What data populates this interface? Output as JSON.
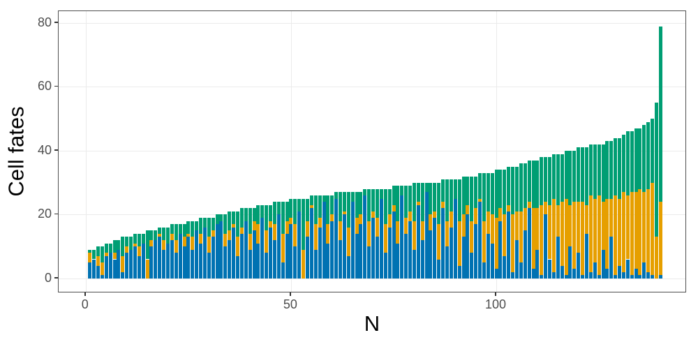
{
  "figure": {
    "background": "#FFFFFF",
    "panel_border_color": "#4F4F4F",
    "grid_color": "#EBEBEB",
    "tick_color": "#333333",
    "tick_label_color": "#4D4D4D",
    "axis_title_color": "#000000"
  },
  "chart_data": {
    "type": "bar",
    "stacked": true,
    "title": "",
    "xlabel": "N",
    "ylabel": "Cell fates",
    "legend": "none",
    "grid": "major",
    "x_ticks": [
      0,
      50,
      100
    ],
    "y_ticks": [
      0,
      20,
      40,
      60,
      80
    ],
    "xlim": [
      -6.6,
      146.4
    ],
    "ylim": [
      -4.6,
      83.7
    ],
    "n_bars": 140,
    "x_start": 1,
    "bar_rel_width": 0.85,
    "series": [
      {
        "name": "fate-blue",
        "color": "#0072B2",
        "values": [
          5,
          6,
          4,
          1,
          7,
          8,
          6,
          9,
          2,
          8,
          9,
          10,
          7,
          11,
          0,
          10,
          12,
          13,
          9,
          11,
          12,
          8,
          14,
          10,
          13,
          9,
          15,
          11,
          16,
          8,
          13,
          17,
          18,
          10,
          12,
          16,
          7,
          14,
          18,
          9,
          15,
          11,
          19,
          8,
          16,
          12,
          20,
          5,
          14,
          17,
          10,
          21,
          0,
          13,
          22,
          9,
          16,
          24,
          11,
          18,
          25,
          12,
          20,
          7,
          24,
          14,
          17,
          26,
          10,
          19,
          13,
          25,
          8,
          16,
          21,
          11,
          26,
          14,
          18,
          9,
          23,
          12,
          27,
          15,
          19,
          6,
          22,
          10,
          16,
          25,
          4,
          13,
          20,
          8,
          17,
          24,
          5,
          14,
          11,
          3,
          18,
          7,
          21,
          2,
          12,
          5,
          15,
          22,
          3,
          9,
          1,
          20,
          6,
          2,
          13,
          4,
          1,
          10,
          3,
          8,
          1,
          14,
          2,
          5,
          1,
          9,
          3,
          13,
          1,
          4,
          2,
          6,
          1,
          3,
          1,
          5,
          2,
          1,
          0,
          1
        ]
      },
      {
        "name": "fate-orange",
        "color": "#E69F00",
        "values": [
          3,
          0,
          3,
          4,
          1,
          0,
          2,
          0,
          5,
          2,
          0,
          1,
          3,
          0,
          6,
          2,
          0,
          1,
          3,
          0,
          2,
          4,
          0,
          3,
          1,
          4,
          0,
          3,
          0,
          5,
          2,
          0,
          0,
          4,
          3,
          1,
          6,
          2,
          0,
          5,
          3,
          6,
          0,
          7,
          2,
          5,
          0,
          9,
          4,
          2,
          7,
          0,
          9,
          5,
          1,
          8,
          3,
          0,
          6,
          2,
          0,
          6,
          1,
          9,
          0,
          5,
          3,
          0,
          8,
          2,
          6,
          0,
          9,
          4,
          2,
          7,
          0,
          5,
          3,
          9,
          1,
          6,
          0,
          5,
          2,
          11,
          2,
          8,
          5,
          0,
          14,
          7,
          3,
          10,
          5,
          1,
          13,
          7,
          9,
          16,
          4,
          13,
          2,
          18,
          9,
          16,
          7,
          2,
          19,
          13,
          22,
          4,
          17,
          23,
          10,
          20,
          24,
          13,
          21,
          16,
          23,
          9,
          24,
          20,
          25,
          15,
          22,
          12,
          25,
          21,
          25,
          20,
          26,
          24,
          27,
          22,
          26,
          29,
          13,
          23
        ]
      },
      {
        "name": "fate-green",
        "color": "#009E73",
        "values": [
          1,
          3,
          3,
          5,
          3,
          3,
          4,
          3,
          6,
          3,
          4,
          3,
          4,
          3,
          9,
          3,
          3,
          2,
          4,
          5,
          3,
          5,
          3,
          4,
          4,
          5,
          3,
          5,
          3,
          6,
          4,
          3,
          2,
          6,
          6,
          4,
          8,
          6,
          4,
          8,
          4,
          6,
          4,
          8,
          5,
          7,
          4,
          10,
          6,
          6,
          8,
          4,
          16,
          7,
          3,
          9,
          7,
          2,
          9,
          6,
          2,
          9,
          6,
          11,
          3,
          8,
          7,
          2,
          10,
          7,
          9,
          3,
          11,
          8,
          6,
          11,
          3,
          10,
          8,
          12,
          6,
          12,
          3,
          10,
          9,
          13,
          7,
          13,
          10,
          6,
          13,
          12,
          9,
          14,
          10,
          8,
          15,
          12,
          13,
          15,
          12,
          14,
          12,
          15,
          14,
          15,
          14,
          13,
          15,
          15,
          15,
          14,
          15,
          14,
          16,
          15,
          15,
          17,
          16,
          17,
          17,
          18,
          16,
          17,
          16,
          18,
          18,
          18,
          18,
          19,
          18,
          20,
          19,
          20,
          19,
          21,
          21,
          20,
          42,
          55
        ]
      }
    ]
  }
}
